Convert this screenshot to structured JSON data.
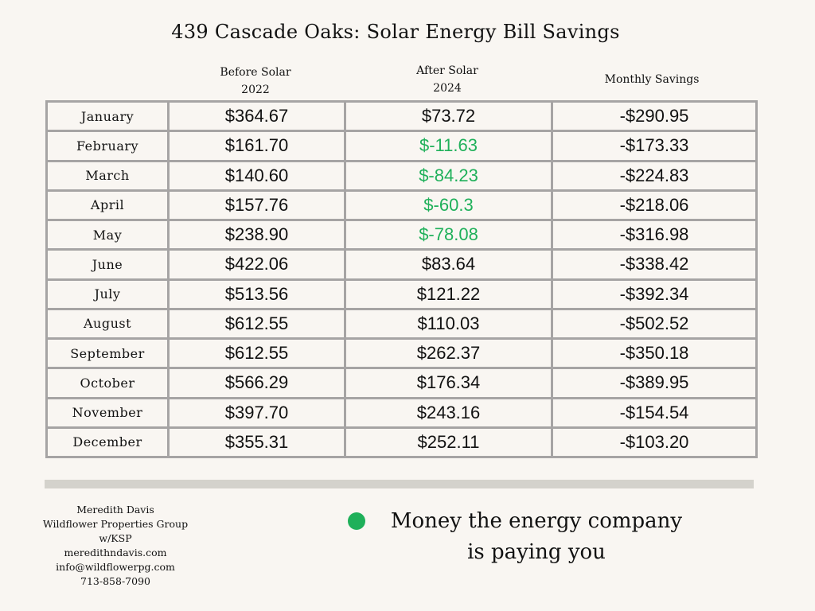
{
  "title": "439 Cascade Oaks: Solar Energy Bill Savings",
  "columns": {
    "before_line1": "Before Solar",
    "before_line2": "2022",
    "after_line1": "After Solar",
    "after_line2": "2024",
    "savings": "Monthly Savings"
  },
  "rows": [
    {
      "month": "January",
      "before": "$364.67",
      "after": "$73.72",
      "savings": "-$290.95"
    },
    {
      "month": "February",
      "before": "$161.70",
      "after": "$-11.63",
      "savings": "-$173.33"
    },
    {
      "month": "March",
      "before": "$140.60",
      "after": "$-84.23",
      "savings": "-$224.83"
    },
    {
      "month": "April",
      "before": "$157.76",
      "after": "$-60.3",
      "savings": "-$218.06"
    },
    {
      "month": "May",
      "before": "$238.90",
      "after": "$-78.08",
      "savings": "-$316.98"
    },
    {
      "month": "June",
      "before": "$422.06",
      "after": "$83.64",
      "savings": "-$338.42"
    },
    {
      "month": "July",
      "before": "$513.56",
      "after": "$121.22",
      "savings": "-$392.34"
    },
    {
      "month": "August",
      "before": "$612.55",
      "after": "$110.03",
      "savings": "-$502.52"
    },
    {
      "month": "September",
      "before": "$612.55",
      "after": "$262.37",
      "savings": "-$350.18"
    },
    {
      "month": "October",
      "before": "$566.29",
      "after": "$176.34",
      "savings": "-$389.95"
    },
    {
      "month": "November",
      "before": "$397.70",
      "after": "$243.16",
      "savings": "-$154.54"
    },
    {
      "month": "December",
      "before": "$355.31",
      "after": "$252.11",
      "savings": "-$103.20"
    }
  ],
  "colors": {
    "negative_green": "#1fb05a",
    "grid_gray": "#a6a4a4",
    "background": "#f9f6f2"
  },
  "contact": {
    "name": "Meredith Davis",
    "company": "Wildflower Properties Group",
    "affiliation": "w/KSP",
    "website": "meredithndavis.com",
    "email": "info@wildflowerpg.com",
    "phone": "713-858-7090"
  },
  "legend": {
    "line1": "Money the energy company",
    "line2": "is paying you"
  }
}
